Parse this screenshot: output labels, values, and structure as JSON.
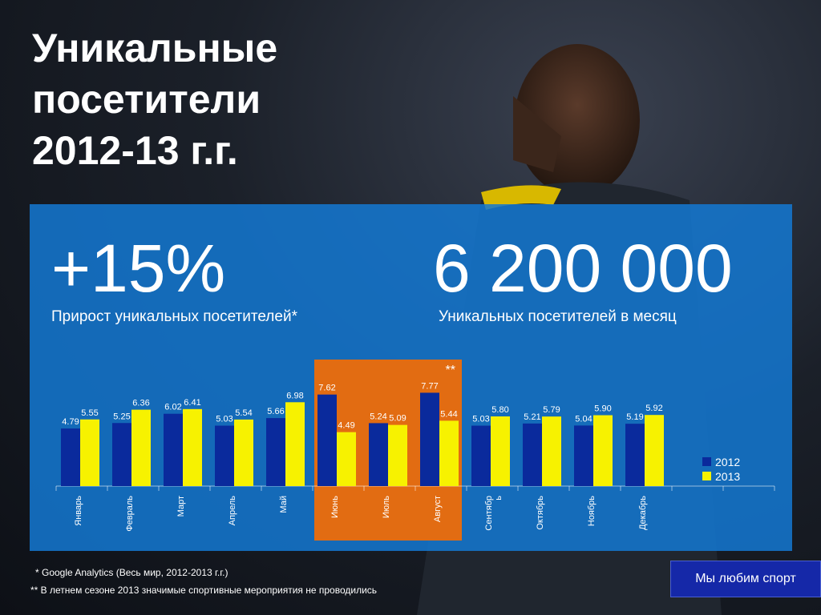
{
  "title_lines": [
    "Уникальные",
    "посетители",
    "2012-13 г.г."
  ],
  "stat_growth": {
    "value": "+15%",
    "label": "Прирост уникальных посетителей*"
  },
  "stat_monthly": {
    "value": "6 200 000",
    "label": "Уникальных посетителей в месяц"
  },
  "highlight_marker": "**",
  "chart_data": {
    "type": "bar",
    "categories": [
      "Январь",
      "Февраль",
      "Март",
      "Апрель",
      "Май",
      "Июнь",
      "Июль",
      "Август",
      "Сентябр\nь",
      "Октябрь",
      "Ноябрь",
      "Декабрь"
    ],
    "series": [
      {
        "name": "2012",
        "values": [
          4.79,
          5.25,
          6.02,
          5.03,
          5.66,
          7.62,
          5.24,
          7.77,
          5.03,
          5.21,
          5.04,
          5.19
        ],
        "labels": [
          "4.79",
          "5.25",
          "6.02",
          "5.03",
          "5.66",
          "7.62",
          "5.24",
          "7.77",
          "5.03",
          "5.21",
          "5.04",
          "5.19"
        ]
      },
      {
        "name": "2013",
        "values": [
          5.55,
          6.36,
          6.41,
          5.54,
          6.98,
          4.49,
          5.09,
          5.44,
          5.8,
          5.79,
          5.9,
          5.92
        ],
        "labels": [
          "5.55",
          "6.36",
          "6.41",
          "5.54",
          "6.98",
          "4.49",
          "5.09",
          "5.44",
          "5.80",
          "5.79",
          "5.90",
          "5.92"
        ]
      }
    ],
    "ylim": [
      0,
      8
    ],
    "highlighted_categories": [
      "Июнь",
      "Июль",
      "Август"
    ],
    "legend_placement": "bottom-right",
    "grid": false
  },
  "colors": {
    "series_2012": "#0a2a9c",
    "series_2013": "#f7f200",
    "highlight": "#e26c12",
    "panel": "#1478d2"
  },
  "footnotes": [
    "* Google Analytics (Весь мир, 2012-2013 г.г.)",
    "** В летнем сезоне 2013 значимые спортивные мероприятия не проводились"
  ],
  "tagline": "Мы любим спорт"
}
